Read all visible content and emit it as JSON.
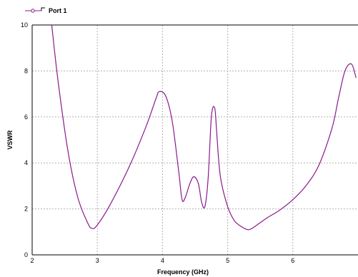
{
  "chart_data": {
    "type": "line",
    "xlabel": "Frequency (GHz)",
    "ylabel": "VSWR",
    "xlim": [
      2,
      7
    ],
    "ylim": [
      0,
      10
    ],
    "x_ticks": [
      2,
      3,
      4,
      5,
      6
    ],
    "y_ticks": [
      0,
      2,
      4,
      6,
      8,
      10
    ],
    "grid": true,
    "legend_position": "top-left",
    "series": [
      {
        "name": "Port 1",
        "color": "#8b1a8b",
        "x": [
          2.3,
          2.4,
          2.55,
          2.7,
          2.85,
          2.92,
          3.0,
          3.2,
          3.5,
          3.75,
          3.9,
          3.95,
          4.05,
          4.15,
          4.25,
          4.3,
          4.35,
          4.42,
          4.48,
          4.55,
          4.6,
          4.65,
          4.7,
          4.75,
          4.8,
          4.83,
          4.86,
          4.9,
          5.0,
          5.1,
          5.2,
          5.3,
          5.35,
          5.4,
          5.6,
          5.8,
          6.0,
          6.2,
          6.4,
          6.6,
          6.7,
          6.8,
          6.9,
          6.97
        ],
        "y": [
          10.0,
          7.5,
          4.5,
          2.5,
          1.4,
          1.15,
          1.3,
          2.2,
          3.9,
          5.6,
          6.8,
          7.1,
          6.9,
          5.8,
          3.6,
          2.4,
          2.5,
          3.1,
          3.4,
          3.1,
          2.3,
          2.1,
          3.3,
          6.0,
          6.4,
          5.4,
          4.2,
          3.2,
          2.1,
          1.5,
          1.25,
          1.1,
          1.12,
          1.2,
          1.6,
          1.95,
          2.4,
          3.0,
          3.9,
          5.5,
          6.8,
          8.0,
          8.3,
          7.7
        ]
      }
    ]
  }
}
